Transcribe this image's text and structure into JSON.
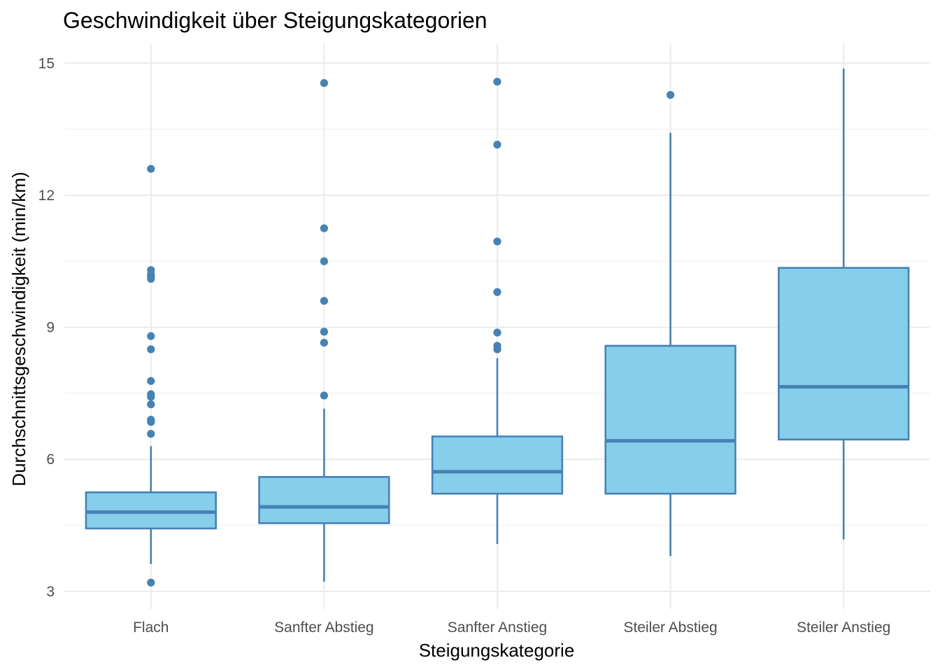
{
  "chart_data": {
    "type": "boxplot",
    "title": "Geschwindigkeit über Steigungskategorien",
    "xlabel": "Steigungskategorie",
    "ylabel": "Durchschnittsgeschwindigkeit (min/km)",
    "ylim": [
      2.6,
      15.45
    ],
    "yticks": [
      3,
      6,
      9,
      12,
      15
    ],
    "grid": true,
    "colors": {
      "fill": "#87CEEB",
      "stroke": "#4682B4",
      "grid": "#EBEBEB"
    },
    "categories": [
      "Flach",
      "Sanfter Abstieg",
      "Sanfter Anstieg",
      "Steiler Abstieg",
      "Steiler Anstieg"
    ],
    "boxes": [
      {
        "category": "Flach",
        "whisker_low": 3.62,
        "q1": 4.43,
        "median": 4.8,
        "q3": 5.25,
        "whisker_high": 6.3,
        "outliers": [
          3.2,
          6.58,
          6.85,
          6.9,
          7.25,
          7.42,
          7.48,
          7.78,
          8.5,
          8.8,
          10.1,
          10.15,
          10.2,
          10.3,
          12.6
        ]
      },
      {
        "category": "Sanfter Abstieg",
        "whisker_low": 3.22,
        "q1": 4.55,
        "median": 4.92,
        "q3": 5.6,
        "whisker_high": 7.15,
        "outliers": [
          7.45,
          8.65,
          8.9,
          9.6,
          10.5,
          11.25,
          14.55
        ]
      },
      {
        "category": "Sanfter Anstieg",
        "whisker_low": 4.08,
        "q1": 5.22,
        "median": 5.72,
        "q3": 6.52,
        "whisker_high": 8.3,
        "outliers": [
          8.5,
          8.58,
          8.88,
          9.8,
          10.95,
          13.15,
          14.58
        ]
      },
      {
        "category": "Steiler Abstieg",
        "whisker_low": 3.8,
        "q1": 5.22,
        "median": 6.42,
        "q3": 8.58,
        "whisker_high": 13.42,
        "outliers": [
          14.28
        ]
      },
      {
        "category": "Steiler Anstieg",
        "whisker_low": 4.18,
        "q1": 6.45,
        "median": 7.65,
        "q3": 10.35,
        "whisker_high": 14.88,
        "outliers": []
      }
    ]
  }
}
